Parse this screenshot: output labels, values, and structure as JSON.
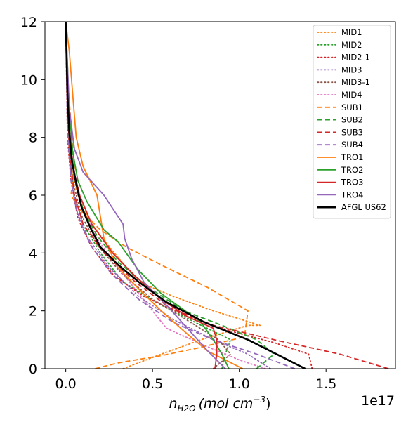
{
  "chart_data": {
    "type": "line",
    "title": "",
    "xlabel_main": "n",
    "xlabel_sub": "H2O",
    "xlabel_units": "(mol cm",
    "xlabel_exp": "−3",
    "xlabel_close": ")",
    "x_offset_text": "1e17",
    "xlim": [
      -0.12,
      1.9
    ],
    "ylim": [
      0,
      12
    ],
    "x_ticks": [
      0.0,
      0.5,
      1.0,
      1.5
    ],
    "x_tick_labels": [
      "0.0",
      "0.5",
      "1.0",
      "1.5"
    ],
    "y_ticks": [
      0,
      2,
      4,
      6,
      8,
      10,
      12
    ],
    "y_tick_labels": [
      "0",
      "2",
      "4",
      "6",
      "8",
      "10",
      "12"
    ],
    "grid": false,
    "legend_position": "top-right",
    "series": [
      {
        "name": "MID1",
        "color": "#ff7f0e",
        "style": "dotted",
        "x": [
          0.33,
          0.55,
          0.78,
          1.05,
          1.12,
          0.85,
          0.62,
          0.42,
          0.28,
          0.15,
          0.07,
          0.03,
          0.01,
          0.0
        ],
        "y": [
          0,
          0.5,
          1.0,
          1.5,
          1.5,
          2.0,
          2.5,
          3.0,
          4.0,
          5.0,
          6.0,
          7.0,
          9.0,
          12.0
        ]
      },
      {
        "name": "MID2",
        "color": "#2ca02c",
        "style": "dotted",
        "x": [
          0.9,
          0.92,
          0.95,
          0.78,
          0.55,
          0.33,
          0.2,
          0.1,
          0.05,
          0.02,
          0.0
        ],
        "y": [
          0,
          0.5,
          1.0,
          1.5,
          2.2,
          3.0,
          4.0,
          5.0,
          6.0,
          7.5,
          12.0
        ]
      },
      {
        "name": "MID2-1",
        "color": "#d62728",
        "style": "dotted",
        "x": [
          1.42,
          1.4,
          1.2,
          0.95,
          0.7,
          0.45,
          0.28,
          0.15,
          0.07,
          0.03,
          0.01,
          0.0
        ],
        "y": [
          0,
          0.5,
          0.9,
          1.3,
          1.8,
          2.5,
          3.2,
          4.2,
          5.2,
          6.5,
          8.0,
          12.0
        ]
      },
      {
        "name": "MID3",
        "color": "#9467bd",
        "style": "dotted",
        "x": [
          1.18,
          1.05,
          0.85,
          0.62,
          0.42,
          0.25,
          0.13,
          0.06,
          0.03,
          0.0
        ],
        "y": [
          0,
          0.5,
          1.0,
          1.7,
          2.5,
          3.5,
          4.5,
          5.5,
          6.8,
          12.0
        ]
      },
      {
        "name": "MID3-1",
        "color": "#8c564b",
        "style": "dotted",
        "x": [
          0.85,
          0.95,
          0.88,
          0.72,
          0.5,
          0.32,
          0.18,
          0.09,
          0.04,
          0.01,
          0.0
        ],
        "y": [
          0,
          0.5,
          1.0,
          1.6,
          2.4,
          3.3,
          4.3,
          5.3,
          6.5,
          8.5,
          12.0
        ]
      },
      {
        "name": "MID4",
        "color": "#e377c2",
        "style": "dotted",
        "x": [
          1.15,
          1.0,
          0.8,
          0.58,
          0.5,
          0.42,
          0.3,
          0.18,
          0.1,
          0.05,
          0.02,
          0.0
        ],
        "y": [
          0,
          0.3,
          0.8,
          1.4,
          2.0,
          2.6,
          3.5,
          4.5,
          5.5,
          6.8,
          8.5,
          12.0
        ]
      },
      {
        "name": "SUB1",
        "color": "#ff7f0e",
        "style": "dashed",
        "x": [
          0.17,
          0.3,
          0.55,
          0.75,
          1.03,
          1.05,
          0.82,
          0.58,
          0.35,
          0.2,
          0.08,
          0.03,
          0.05,
          0.03,
          0.01,
          0.0
        ],
        "y": [
          0,
          0.2,
          0.45,
          0.7,
          1.1,
          2.0,
          2.8,
          3.5,
          4.2,
          4.8,
          5.5,
          6.0,
          7.0,
          8.5,
          10.0,
          12.0
        ]
      },
      {
        "name": "SUB2",
        "color": "#2ca02c",
        "style": "dashed",
        "x": [
          1.1,
          1.2,
          1.1,
          0.9,
          0.68,
          0.48,
          0.3,
          0.18,
          0.1,
          0.05,
          0.02,
          0.0
        ],
        "y": [
          0,
          0.5,
          1.0,
          1.5,
          2.0,
          2.8,
          3.7,
          4.6,
          5.5,
          6.6,
          8.3,
          12.0
        ]
      },
      {
        "name": "SUB3",
        "color": "#d62728",
        "style": "dashed",
        "x": [
          1.86,
          1.58,
          1.2,
          0.85,
          0.6,
          0.4,
          0.22,
          0.1,
          0.05,
          0.02,
          0.0
        ],
        "y": [
          0,
          0.5,
          1.0,
          1.5,
          2.1,
          3.0,
          4.0,
          5.0,
          6.0,
          7.5,
          12.0
        ]
      },
      {
        "name": "SUB4",
        "color": "#9467bd",
        "style": "dashed",
        "x": [
          1.32,
          1.1,
          0.85,
          0.62,
          0.42,
          0.26,
          0.14,
          0.07,
          0.03,
          0.01,
          0.0
        ],
        "y": [
          0,
          0.5,
          1.0,
          1.6,
          2.4,
          3.3,
          4.3,
          5.3,
          6.5,
          8.2,
          12.0
        ]
      },
      {
        "name": "TRO1",
        "color": "#ff7f0e",
        "style": "solid",
        "x": [
          1.02,
          0.82,
          0.7,
          0.55,
          0.43,
          0.3,
          0.22,
          0.18,
          0.1,
          0.06,
          0.04,
          0.02,
          0.0
        ],
        "y": [
          0,
          0.6,
          1.2,
          2.0,
          2.7,
          3.5,
          4.5,
          6.0,
          7.0,
          8.0,
          9.5,
          11.0,
          12.0
        ]
      },
      {
        "name": "TRO2",
        "color": "#2ca02c",
        "style": "solid",
        "x": [
          0.94,
          0.9,
          0.85,
          0.78,
          0.55,
          0.42,
          0.3,
          0.22,
          0.12,
          0.07,
          0.04,
          0.02,
          0.0
        ],
        "y": [
          0,
          0.5,
          1.0,
          1.6,
          2.6,
          3.4,
          4.4,
          4.8,
          5.8,
          6.5,
          7.5,
          9.0,
          12.0
        ]
      },
      {
        "name": "TRO3",
        "color": "#d62728",
        "style": "solid",
        "x": [
          0.86,
          0.87,
          0.87,
          0.85,
          0.7,
          0.55,
          0.4,
          0.27,
          0.15,
          0.08,
          0.04,
          0.01,
          0.0
        ],
        "y": [
          0,
          0.5,
          1.0,
          1.4,
          1.8,
          2.4,
          3.2,
          4.0,
          5.0,
          6.0,
          7.0,
          9.0,
          12.0
        ]
      },
      {
        "name": "TRO4",
        "color": "#9467bd",
        "style": "solid",
        "x": [
          0.92,
          0.82,
          0.7,
          0.58,
          0.45,
          0.38,
          0.34,
          0.33,
          0.22,
          0.1,
          0.05,
          0.02,
          0.0
        ],
        "y": [
          0,
          0.6,
          1.4,
          2.2,
          3.0,
          3.8,
          4.5,
          5.0,
          6.0,
          6.8,
          7.6,
          9.0,
          12.0
        ]
      },
      {
        "name": "AFGL US62",
        "color": "#000000",
        "style": "solid",
        "bold": true,
        "x": [
          1.38,
          1.05,
          0.8,
          0.58,
          0.42,
          0.3,
          0.2,
          0.14,
          0.09,
          0.06,
          0.035,
          0.02,
          0.01,
          0.004,
          0.0
        ],
        "y": [
          0,
          1.0,
          1.6,
          2.3,
          3.0,
          3.6,
          4.2,
          4.9,
          5.6,
          6.4,
          7.2,
          8.2,
          9.5,
          11.0,
          12.0
        ]
      }
    ]
  }
}
